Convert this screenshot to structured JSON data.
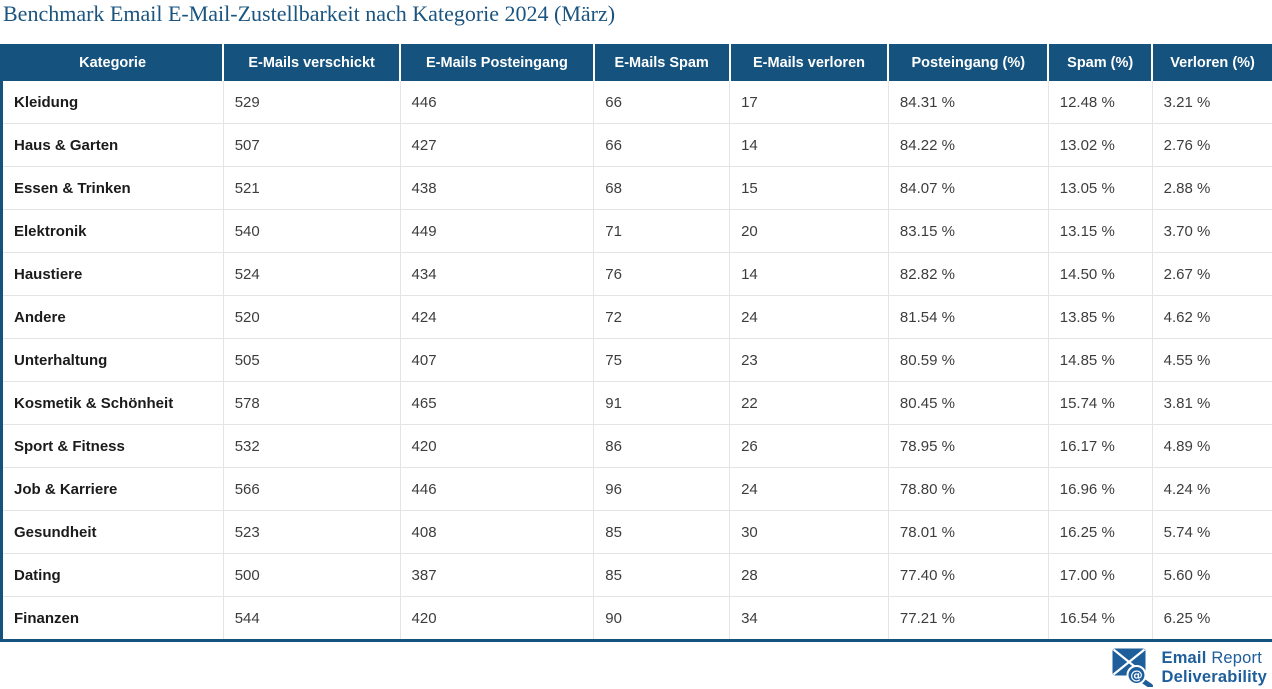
{
  "page": {
    "title": "Benchmark Email E-Mail-Zustellbarkeit nach Kategorie 2024 (März)"
  },
  "chart_data": {
    "type": "table",
    "title": "Benchmark Email E-Mail-Zustellbarkeit nach Kategorie 2024 (März)",
    "columns": [
      "Kategorie",
      "E-Mails verschickt",
      "E-Mails Posteingang",
      "E-Mails Spam",
      "E-Mails verloren",
      "Posteingang (%)",
      "Spam (%)",
      "Verloren (%)"
    ],
    "rows": [
      [
        "Kleidung",
        "529",
        "446",
        "66",
        "17",
        "84.31 %",
        "12.48 %",
        "3.21 %"
      ],
      [
        "Haus & Garten",
        "507",
        "427",
        "66",
        "14",
        "84.22 %",
        "13.02 %",
        "2.76 %"
      ],
      [
        "Essen & Trinken",
        "521",
        "438",
        "68",
        "15",
        "84.07 %",
        "13.05 %",
        "2.88 %"
      ],
      [
        "Elektronik",
        "540",
        "449",
        "71",
        "20",
        "83.15 %",
        "13.15 %",
        "3.70 %"
      ],
      [
        "Haustiere",
        "524",
        "434",
        "76",
        "14",
        "82.82 %",
        "14.50 %",
        "2.67 %"
      ],
      [
        "Andere",
        "520",
        "424",
        "72",
        "24",
        "81.54 %",
        "13.85 %",
        "4.62 %"
      ],
      [
        "Unterhaltung",
        "505",
        "407",
        "75",
        "23",
        "80.59 %",
        "14.85 %",
        "4.55 %"
      ],
      [
        "Kosmetik & Schönheit",
        "578",
        "465",
        "91",
        "22",
        "80.45 %",
        "15.74 %",
        "3.81 %"
      ],
      [
        "Sport & Fitness",
        "532",
        "420",
        "86",
        "26",
        "78.95 %",
        "16.17 %",
        "4.89 %"
      ],
      [
        "Job & Karriere",
        "566",
        "446",
        "96",
        "24",
        "78.80 %",
        "16.96 %",
        "4.24 %"
      ],
      [
        "Gesundheit",
        "523",
        "408",
        "85",
        "30",
        "78.01 %",
        "16.25 %",
        "5.74 %"
      ],
      [
        "Dating",
        "500",
        "387",
        "85",
        "28",
        "77.40 %",
        "17.00 %",
        "5.60 %"
      ],
      [
        "Finanzen",
        "544",
        "420",
        "90",
        "34",
        "77.21 %",
        "16.54 %",
        "6.25 %"
      ]
    ],
    "layout": {
      "grid": "light-gray row and column separators",
      "header_position": "top"
    }
  },
  "logo": {
    "line1_bold": "Email",
    "line1_regular": "Report",
    "line2": "Deliverability",
    "icon": "envelope-magnifier-icon"
  },
  "colors": {
    "header_bg": "#15537E",
    "title_text": "#1A547F",
    "logo_blue": "#1D5E9B",
    "body_text": "#3D3D3D",
    "grid_line": "#E4E4E4"
  }
}
